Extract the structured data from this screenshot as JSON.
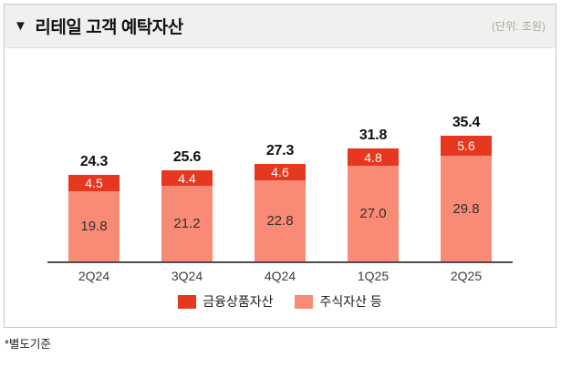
{
  "header": {
    "collapse_icon": "▼",
    "title": "리테일 고객 예탁자산",
    "unit": "(단위: 조원)"
  },
  "chart_data": {
    "type": "bar",
    "stacked": true,
    "title": "리테일 고객 예탁자산",
    "unit_label": "(단위: 조원)",
    "categories": [
      "2Q24",
      "3Q24",
      "4Q24",
      "1Q25",
      "2Q25"
    ],
    "series": [
      {
        "name": "금융상품자산",
        "color": "#E6381F",
        "values": [
          4.5,
          4.4,
          4.6,
          4.8,
          5.6
        ]
      },
      {
        "name": "주식자산 등",
        "color": "#F98B76",
        "values": [
          19.8,
          21.2,
          22.8,
          27.0,
          29.8
        ]
      }
    ],
    "totals": [
      24.3,
      25.6,
      27.3,
      31.8,
      35.4
    ],
    "ylim": [
      0,
      38
    ],
    "grid": false,
    "legend_position": "bottom"
  },
  "footnote": "*별도기준"
}
